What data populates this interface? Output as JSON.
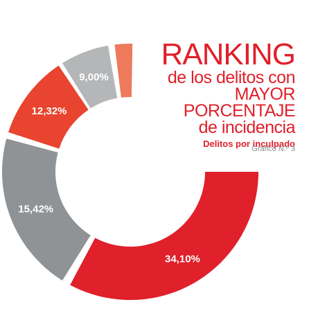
{
  "colors": {
    "red": "#e0202a",
    "red_light": "#e8442f",
    "orange": "#ee7a5c",
    "gray": "#909396",
    "gray_light": "#b4b6b8",
    "title": "#e0202a",
    "caption": "#8a8a8a"
  },
  "title": {
    "main": "RANKING",
    "line1": "de los delitos con",
    "line2": "MAYOR PORCENTAJE",
    "line3": "de incidencia",
    "subtitle": "Delitos por inculpado"
  },
  "chart_number": "Gráfico N.º 3",
  "chart_data": {
    "type": "pie",
    "title": "RANKING de los delitos con MAYOR PORCENTAJE de incidencia",
    "subtitle": "Delitos por inculpado",
    "slices": [
      {
        "label": "34,10%",
        "value": 34.1,
        "color": "#e0202a"
      },
      {
        "label": "15,42%",
        "value": 15.42,
        "color": "#909396"
      },
      {
        "label": "12,32%",
        "value": 12.32,
        "color": "#e8442f"
      },
      {
        "label": "9,00%",
        "value": 9.0,
        "color": "#b4b6b8"
      },
      {
        "label": "",
        "value": 2.8,
        "color": "#ee7a5c"
      }
    ],
    "donut": true
  }
}
